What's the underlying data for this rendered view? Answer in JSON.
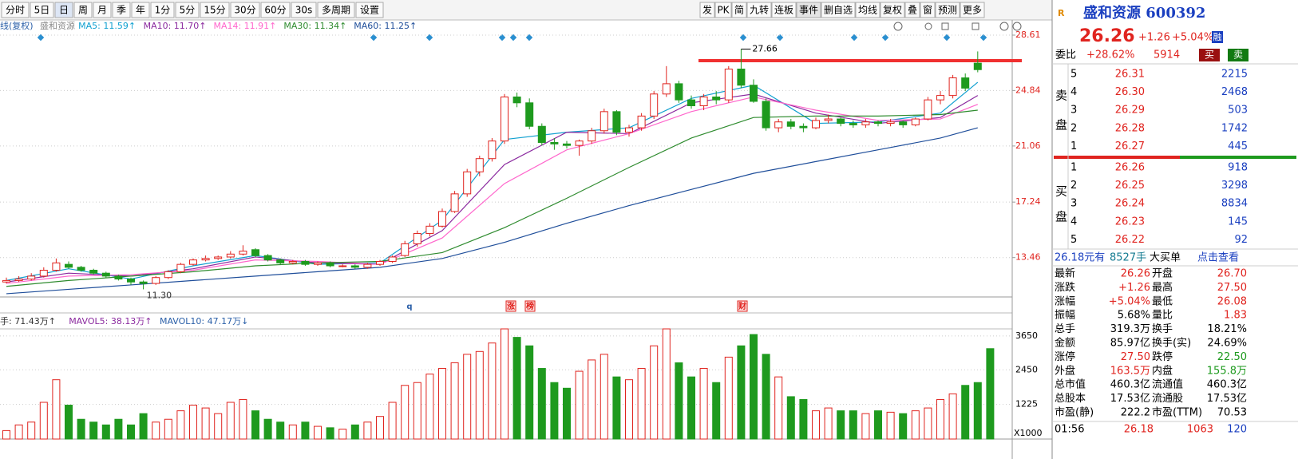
{
  "toolbar": {
    "left": [
      "分时",
      "5日",
      "日",
      "周",
      "月",
      "季",
      "年",
      "1分",
      "5分",
      "15分",
      "30分",
      "60分",
      "30s",
      "多周期",
      "设置"
    ],
    "right": [
      "发",
      "PK",
      "简",
      "九转",
      "连板",
      "事件",
      "删自选",
      "均线",
      "复权",
      "叠",
      "窗",
      "预测",
      "更多"
    ]
  },
  "chart": {
    "type": "candlestick",
    "legend_prefix": "线(复权)",
    "legend_name": "盛和资源",
    "ylim": [
      10.78,
      29.48
    ],
    "yticks": [
      {
        "value": 28.61,
        "label": "28.61"
      },
      {
        "value": 24.84,
        "label": "24.84"
      },
      {
        "value": 21.06,
        "label": "21.06"
      },
      {
        "value": 17.24,
        "label": "17.24"
      },
      {
        "value": 13.46,
        "label": "13.46"
      }
    ],
    "up_color": "#e0241f",
    "down_color": "#1e9a1e",
    "candles": [
      [
        11.8,
        12.1,
        11.7,
        11.9
      ],
      [
        11.9,
        12.2,
        11.8,
        12.0
      ],
      [
        12.0,
        12.4,
        11.9,
        12.2
      ],
      [
        12.2,
        12.8,
        12.1,
        12.6
      ],
      [
        12.6,
        13.4,
        12.5,
        13.1
      ],
      [
        13.0,
        13.2,
        12.7,
        12.8
      ],
      [
        12.8,
        12.9,
        12.5,
        12.6
      ],
      [
        12.6,
        12.7,
        12.3,
        12.4
      ],
      [
        12.4,
        12.5,
        12.1,
        12.2
      ],
      [
        12.2,
        12.3,
        11.9,
        12.0
      ],
      [
        12.0,
        12.1,
        11.6,
        11.8
      ],
      [
        11.8,
        11.9,
        11.3,
        11.7
      ],
      [
        11.7,
        12.2,
        11.6,
        12.1
      ],
      [
        12.1,
        12.6,
        12.0,
        12.5
      ],
      [
        12.5,
        13.1,
        12.4,
        13.0
      ],
      [
        13.0,
        13.4,
        12.9,
        13.3
      ],
      [
        13.3,
        13.6,
        13.2,
        13.4
      ],
      [
        13.4,
        13.6,
        13.3,
        13.5
      ],
      [
        13.5,
        13.9,
        13.4,
        13.7
      ],
      [
        13.7,
        14.3,
        13.6,
        13.9
      ],
      [
        14.0,
        14.1,
        13.5,
        13.6
      ],
      [
        13.6,
        13.7,
        13.2,
        13.3
      ],
      [
        13.3,
        13.4,
        13.0,
        13.1
      ],
      [
        13.1,
        13.3,
        13.0,
        13.2
      ],
      [
        13.2,
        13.3,
        12.9,
        13.0
      ],
      [
        13.0,
        13.2,
        12.9,
        13.1
      ],
      [
        13.1,
        13.2,
        12.8,
        12.9
      ],
      [
        12.9,
        13.0,
        12.8,
        12.9
      ],
      [
        12.9,
        13.0,
        12.7,
        12.8
      ],
      [
        12.8,
        13.1,
        12.7,
        13.0
      ],
      [
        13.0,
        13.3,
        12.9,
        13.2
      ],
      [
        13.2,
        13.6,
        13.1,
        13.5
      ],
      [
        13.6,
        14.6,
        13.5,
        14.4
      ],
      [
        14.4,
        15.3,
        14.2,
        15.1
      ],
      [
        15.1,
        15.8,
        14.9,
        15.6
      ],
      [
        15.6,
        16.8,
        15.5,
        16.6
      ],
      [
        16.6,
        18.0,
        16.5,
        17.8
      ],
      [
        17.8,
        19.5,
        17.6,
        19.3
      ],
      [
        19.3,
        20.4,
        19.0,
        20.2
      ],
      [
        20.2,
        21.6,
        20.0,
        21.4
      ],
      [
        21.4,
        24.6,
        21.2,
        24.4
      ],
      [
        24.4,
        24.7,
        23.7,
        24.0
      ],
      [
        24.0,
        24.3,
        22.2,
        22.4
      ],
      [
        22.4,
        22.6,
        21.1,
        21.3
      ],
      [
        21.3,
        21.6,
        20.8,
        21.2
      ],
      [
        21.2,
        21.4,
        20.9,
        21.1
      ],
      [
        21.1,
        21.5,
        20.4,
        21.4
      ],
      [
        21.4,
        22.3,
        21.2,
        22.1
      ],
      [
        22.1,
        23.6,
        21.9,
        23.4
      ],
      [
        23.4,
        23.5,
        21.8,
        22.0
      ],
      [
        22.0,
        22.5,
        21.7,
        22.3
      ],
      [
        22.3,
        23.3,
        22.1,
        23.1
      ],
      [
        23.1,
        24.8,
        22.9,
        24.6
      ],
      [
        24.6,
        26.5,
        24.4,
        25.3
      ],
      [
        25.3,
        25.5,
        24.0,
        24.2
      ],
      [
        24.2,
        24.5,
        23.6,
        23.8
      ],
      [
        23.8,
        24.6,
        23.5,
        24.4
      ],
      [
        24.4,
        24.8,
        23.9,
        24.2
      ],
      [
        24.2,
        26.5,
        24.0,
        26.3
      ],
      [
        26.3,
        27.66,
        25.0,
        25.2
      ],
      [
        25.2,
        25.6,
        24.0,
        24.1
      ],
      [
        24.1,
        24.3,
        22.1,
        22.3
      ],
      [
        22.3,
        22.9,
        22.0,
        22.7
      ],
      [
        22.7,
        22.9,
        22.2,
        22.4
      ],
      [
        22.4,
        22.6,
        22.0,
        22.3
      ],
      [
        22.3,
        23.0,
        22.2,
        22.8
      ],
      [
        22.8,
        23.2,
        22.6,
        22.9
      ],
      [
        22.9,
        23.0,
        22.4,
        22.6
      ],
      [
        22.6,
        22.8,
        22.3,
        22.5
      ],
      [
        22.5,
        22.9,
        22.3,
        22.7
      ],
      [
        22.7,
        22.8,
        22.4,
        22.6
      ],
      [
        22.6,
        22.9,
        22.4,
        22.7
      ],
      [
        22.7,
        22.8,
        22.3,
        22.5
      ],
      [
        22.5,
        23.0,
        22.4,
        22.9
      ],
      [
        22.9,
        24.4,
        22.8,
        24.2
      ],
      [
        24.2,
        24.8,
        23.9,
        24.5
      ],
      [
        24.5,
        25.9,
        24.3,
        25.7
      ],
      [
        25.7,
        26.0,
        24.8,
        25.0
      ],
      [
        26.7,
        27.5,
        26.08,
        26.26
      ]
    ],
    "ma_x": [
      0,
      5,
      10,
      15,
      20,
      25,
      30,
      35,
      40,
      45,
      50,
      55,
      60,
      65,
      70,
      75,
      78
    ],
    "series": [
      {
        "name": "MA5: 11.59↑",
        "color": "#10a0d0",
        "values": [
          11.9,
          12.7,
          12.0,
          12.9,
          13.6,
          13.0,
          13.1,
          16.0,
          21.5,
          22.0,
          22.3,
          24.3,
          25.2,
          22.6,
          22.7,
          23.3,
          25.4
        ]
      },
      {
        "name": "MA10: 11.70↑",
        "color": "#8b2a9f",
        "values": [
          11.8,
          12.4,
          12.2,
          12.7,
          13.5,
          13.1,
          13.0,
          15.3,
          19.8,
          22.0,
          21.9,
          24.0,
          24.6,
          23.3,
          22.6,
          23.0,
          24.5
        ]
      },
      {
        "name": "MA14: 11.91↑",
        "color": "#ff66cc",
        "values": [
          11.7,
          12.2,
          12.3,
          12.6,
          13.3,
          13.2,
          13.0,
          14.8,
          18.5,
          20.8,
          21.9,
          23.4,
          24.4,
          23.5,
          22.8,
          22.9,
          23.9
        ]
      },
      {
        "name": "MA30: 11.34↑",
        "color": "#2e8b2e",
        "values": [
          11.5,
          11.9,
          12.2,
          12.5,
          12.9,
          13.1,
          13.2,
          13.8,
          15.5,
          17.5,
          19.6,
          21.6,
          23.0,
          23.1,
          23.1,
          23.2,
          23.5
        ]
      },
      {
        "name": "MA60: 11.25↑",
        "color": "#1f4e9a",
        "values": [
          11.0,
          11.3,
          11.6,
          11.9,
          12.2,
          12.5,
          12.8,
          13.4,
          14.5,
          15.8,
          17.0,
          18.1,
          19.2,
          20.0,
          20.8,
          21.6,
          22.3
        ]
      }
    ],
    "high_label": "27.66",
    "low_label": "11.30",
    "markers": [
      "q",
      "涨",
      "榜",
      "财"
    ]
  },
  "volume": {
    "type": "bar",
    "legend": [
      "手: 71.43万↑",
      "MAVOL5: 38.13万↑",
      "MAVOL10: 47.17万↓"
    ],
    "unit": "X1000",
    "ylim": [
      0,
      3900
    ],
    "yticks": [
      3650,
      2450,
      1225
    ],
    "values": [
      300,
      500,
      600,
      1300,
      2100,
      1200,
      700,
      600,
      500,
      700,
      500,
      900,
      600,
      700,
      1000,
      1200,
      1100,
      900,
      1300,
      1400,
      1000,
      700,
      600,
      500,
      600,
      450,
      400,
      350,
      500,
      600,
      800,
      1300,
      1900,
      2000,
      2300,
      2500,
      2700,
      3000,
      3100,
      3400,
      3900,
      3600,
      3300,
      2500,
      2000,
      1800,
      2400,
      2800,
      3000,
      2200,
      2100,
      2500,
      3300,
      3900,
      2700,
      2200,
      2500,
      2000,
      2900,
      3300,
      3700,
      3000,
      2200,
      1500,
      1400,
      1000,
      1100,
      1000,
      1000,
      900,
      1000,
      950,
      900,
      1000,
      1100,
      1400,
      1600,
      1900,
      2000,
      3200
    ]
  },
  "quote": {
    "r": "R",
    "title": "盛和资源 600392",
    "price": "26.26",
    "change": "+1.26",
    "pct": "+5.04%",
    "margin": "融",
    "weibi_label": "委比",
    "weibi": "+28.62%",
    "weicha": "5914",
    "buy_btn": "买",
    "sell_btn": "卖",
    "sell_label": [
      "卖",
      "盘"
    ],
    "buy_label": [
      "买",
      "盘"
    ],
    "sells": [
      [
        "5",
        "26.31",
        "2215"
      ],
      [
        "4",
        "26.30",
        "2468"
      ],
      [
        "3",
        "26.29",
        "503"
      ],
      [
        "2",
        "26.28",
        "1742"
      ],
      [
        "1",
        "26.27",
        "445"
      ]
    ],
    "buys": [
      [
        "1",
        "26.26",
        "918"
      ],
      [
        "2",
        "26.25",
        "3298"
      ],
      [
        "3",
        "26.24",
        "8834"
      ],
      [
        "4",
        "26.23",
        "145"
      ],
      [
        "5",
        "26.22",
        "92"
      ]
    ],
    "bigorder": [
      "26.18元有",
      "8527手",
      "大买单",
      "点击查看"
    ],
    "stats": [
      [
        "最新",
        "26.26",
        "开盘",
        "26.70"
      ],
      [
        "涨跌",
        "+1.26",
        "最高",
        "27.50"
      ],
      [
        "涨幅",
        "+5.04%",
        "最低",
        "26.08"
      ],
      [
        "振幅",
        "5.68%",
        "量比",
        "1.83"
      ],
      [
        "总手",
        "319.3万",
        "换手",
        "18.21%"
      ],
      [
        "金额",
        "85.97亿",
        "换手(实)",
        "24.69%"
      ],
      [
        "涨停",
        "27.50",
        "跌停",
        "22.50"
      ],
      [
        "外盘",
        "163.5万",
        "内盘",
        "155.8万"
      ],
      [
        "总市值",
        "460.3亿",
        "流通值",
        "460.3亿"
      ],
      [
        "总股本",
        "17.53亿",
        "流通股",
        "17.53亿"
      ],
      [
        "市盈(静)",
        "222.2",
        "市盈(TTM)",
        "70.53"
      ]
    ],
    "stat_colors": [
      [
        "#e0241f",
        "#e0241f"
      ],
      [
        "#e0241f",
        "#e0241f"
      ],
      [
        "#e0241f",
        "#e0241f"
      ],
      [
        "#000",
        "#e0241f"
      ],
      [
        "#000",
        "#000"
      ],
      [
        "#000",
        "#000"
      ],
      [
        "#e0241f",
        "#1e9a1e"
      ],
      [
        "#e0241f",
        "#1e9a1e"
      ],
      [
        "#000",
        "#000"
      ],
      [
        "#000",
        "#000"
      ],
      [
        "#000",
        "#000"
      ]
    ],
    "tick": [
      "01:56",
      "26.18",
      "1063",
      "120"
    ]
  }
}
